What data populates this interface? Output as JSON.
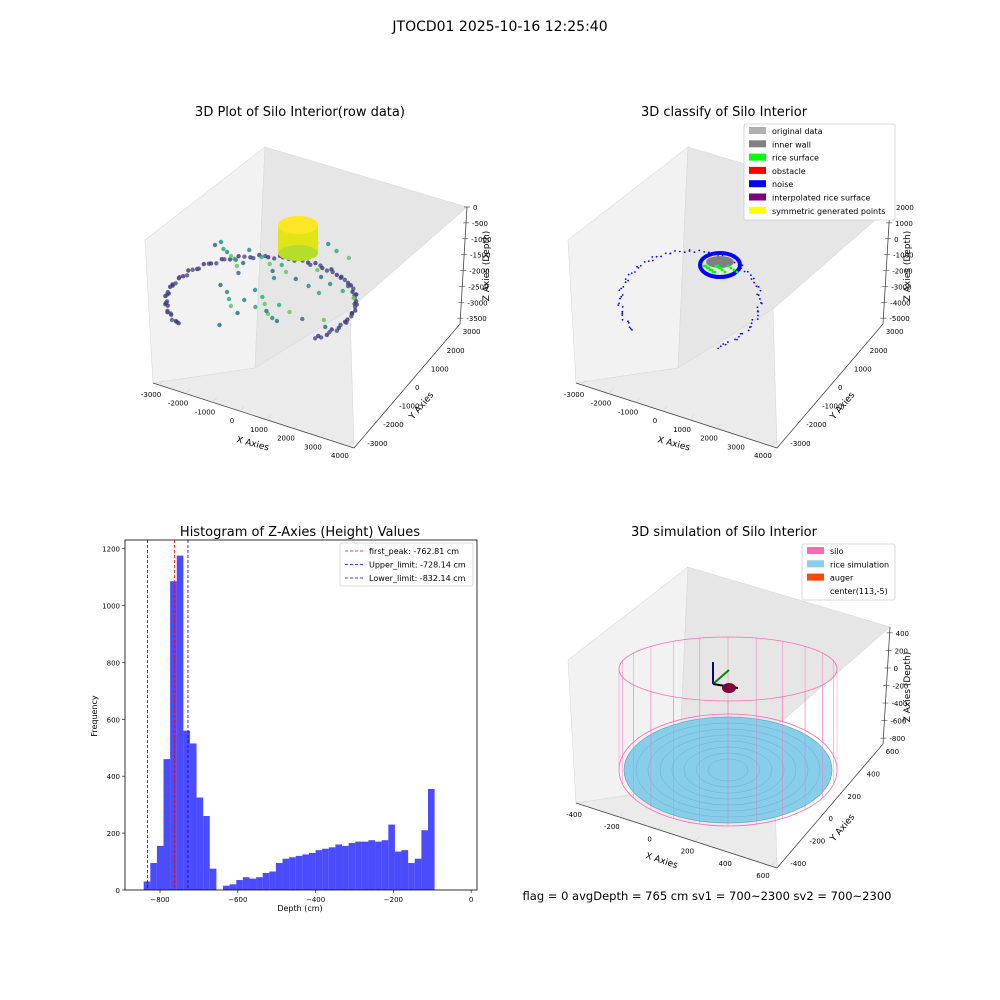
{
  "suptitle": "JTOCD01 2025-10-16 12:25:40",
  "status_text": "flag = 0     avgDepth = 765 cm  sv1 = 700~2300  sv2 = 700~2300",
  "colors": {
    "hist_bar": "#0000ff",
    "peak_line": "#ff0000",
    "limit_line": "#0000ff",
    "silo": "#ff69b4",
    "rice": "#87ceeb",
    "auger": "#ff4500",
    "original": "#b0b0b0",
    "inner_wall": "#808080",
    "rice_surface": "#00ff00",
    "obstacle": "#ff0000",
    "noise": "#0000ff",
    "interp": "#800080",
    "symmetric": "#ffff00"
  },
  "chart_data": [
    {
      "type": "scatter",
      "title": "3D Plot of Silo Interior(row data)",
      "xlabel": "X Axies",
      "ylabel": "Y Axies",
      "zlabel": "Z Axies (Depth)",
      "x_ticks": [
        "-3000",
        "-2000",
        "-1000",
        "0",
        "1000",
        "2000",
        "3000",
        "4000"
      ],
      "y_ticks": [
        "-3000",
        "-2000",
        "-1000",
        "0",
        "1000",
        "2000",
        "3000"
      ],
      "z_ticks": [
        "0",
        "-500",
        "-1000",
        "-1500",
        "-2000",
        "-2500",
        "-3000",
        "-3500"
      ],
      "grid": true
    },
    {
      "type": "scatter",
      "title": "3D classify of Silo Interior",
      "xlabel": "X Axies",
      "ylabel": "Y Axies",
      "zlabel": "Z Axies (Depth)",
      "x_ticks": [
        "-3000",
        "-2000",
        "-1000",
        "0",
        "1000",
        "2000",
        "3000",
        "4000"
      ],
      "y_ticks": [
        "-3000",
        "-2000",
        "-1000",
        "0",
        "1000",
        "2000",
        "3000"
      ],
      "z_ticks": [
        "2000",
        "1000",
        "0",
        "-1000",
        "-2000",
        "-3000",
        "-4000",
        "-5000"
      ],
      "legend": [
        {
          "label": "original data",
          "color": "#b0b0b0"
        },
        {
          "label": "inner wall",
          "color": "#808080"
        },
        {
          "label": "rice surface",
          "color": "#00ff00"
        },
        {
          "label": "obstacle",
          "color": "#ff0000"
        },
        {
          "label": "noise",
          "color": "#0000ff"
        },
        {
          "label": "interpolated rice surface",
          "color": "#800080"
        },
        {
          "label": "symmetric generated points",
          "color": "#ffff00"
        }
      ],
      "legend_position": "top-right",
      "grid": true
    },
    {
      "type": "bar",
      "title": "Histogram of Z-Axies (Height) Values",
      "xlabel": "Depth (cm)",
      "ylabel": "Frequency",
      "xlim": [
        -890,
        15
      ],
      "ylim": [
        0,
        1230
      ],
      "x_ticks": [
        -800,
        -600,
        -400,
        -200,
        0
      ],
      "y_ticks": [
        0,
        200,
        400,
        600,
        800,
        1000,
        1200
      ],
      "bin_start": -842,
      "bin_width": 17,
      "values": [
        30,
        95,
        155,
        460,
        1085,
        1175,
        560,
        515,
        325,
        260,
        75,
        0,
        15,
        20,
        35,
        45,
        40,
        45,
        60,
        65,
        95,
        110,
        115,
        120,
        125,
        130,
        140,
        145,
        150,
        160,
        155,
        165,
        170,
        170,
        175,
        170,
        175,
        230,
        135,
        140,
        95,
        110,
        210,
        355
      ],
      "lines": [
        {
          "label": "first_peak: -762.81 cm",
          "x": -762.81,
          "color": "#ff0000"
        },
        {
          "label": "Upper_limit: -728.14 cm",
          "x": -728.14,
          "color": "#0000ff"
        },
        {
          "label": "Lower_limit: -832.14 cm",
          "x": -832.14,
          "color": "#0000ff"
        }
      ],
      "legend_position": "top-right",
      "grid": false
    },
    {
      "type": "scatter",
      "title": "3D simulation of Silo Interior",
      "xlabel": "X Axies",
      "ylabel": "Y Axies",
      "zlabel": "Z Axies (Depth)",
      "x_ticks": [
        "-400",
        "-200",
        "0",
        "200",
        "400",
        "600"
      ],
      "y_ticks": [
        "-400",
        "-200",
        "0",
        "200",
        "400",
        "600"
      ],
      "z_ticks": [
        "400",
        "200",
        "0",
        "-200",
        "-400",
        "-600",
        "-800"
      ],
      "legend": [
        {
          "label": "silo",
          "color": "#ff69b4"
        },
        {
          "label": "rice simulation",
          "color": "#87ceeb"
        },
        {
          "label": "auger",
          "color": "#ff4500"
        },
        {
          "label": "center(113,-5)",
          "color": ""
        }
      ],
      "legend_position": "top-right",
      "grid": true
    }
  ]
}
